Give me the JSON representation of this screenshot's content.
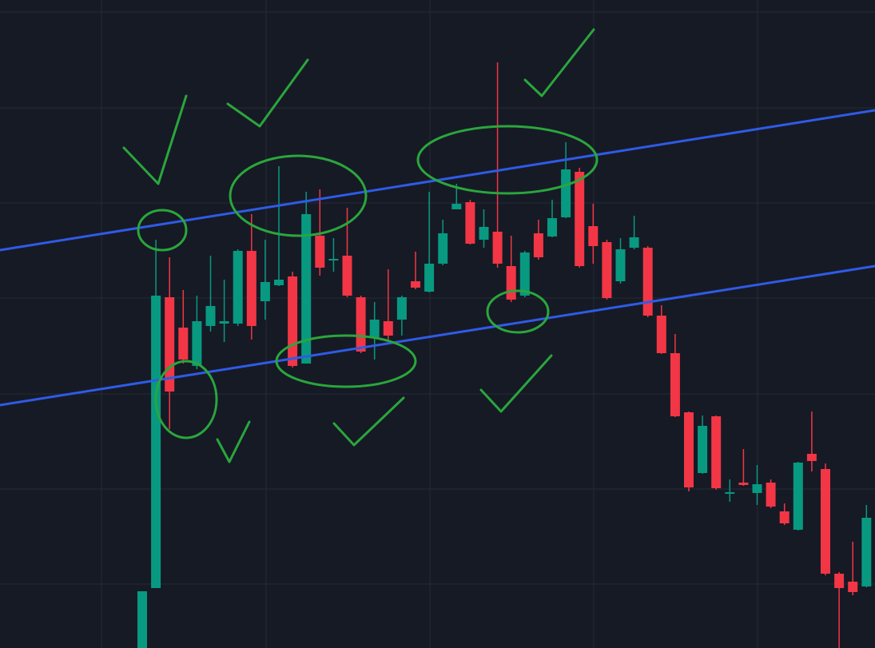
{
  "chart_data": {
    "type": "candlestick",
    "categories": [
      null,
      null,
      null,
      null,
      null,
      null,
      null,
      null,
      null,
      null,
      null,
      null,
      null,
      null,
      null,
      null,
      null,
      null,
      null,
      null,
      null,
      null,
      null,
      null,
      null,
      null,
      null,
      null,
      null,
      null,
      null,
      null,
      null,
      null,
      null,
      null,
      null,
      null,
      null,
      null,
      null,
      null,
      null,
      null,
      null,
      null,
      null,
      null,
      null,
      null,
      null,
      null,
      null,
      null
    ],
    "open": [
      0,
      75,
      439,
      401,
      353,
      403,
      406,
      406,
      497,
      434,
      454,
      465,
      356,
      516,
      485,
      491,
      439,
      389,
      409,
      411,
      459,
      446,
      481,
      549,
      558,
      511,
      521,
      478,
      441,
      519,
      515,
      539,
      596,
      528,
      508,
      459,
      501,
      501,
      416,
      369,
      295,
      219,
      290,
      193,
      207,
      194,
      207,
      171,
      148,
      243,
      224,
      93,
      83,
      77
    ],
    "high": [
      71,
      511,
      489,
      448,
      441,
      491,
      461,
      499,
      543,
      511,
      603,
      471,
      571,
      574,
      513,
      551,
      441,
      433,
      474,
      441,
      496,
      571,
      536,
      581,
      561,
      549,
      733,
      516,
      497,
      536,
      561,
      633,
      601,
      556,
      511,
      513,
      541,
      503,
      429,
      393,
      296,
      291,
      291,
      211,
      249,
      229,
      211,
      181,
      233,
      296,
      231,
      95,
      133,
      179
    ],
    "low": [
      0,
      75,
      274,
      356,
      349,
      396,
      383,
      403,
      386,
      411,
      453,
      351,
      356,
      466,
      471,
      439,
      369,
      361,
      386,
      391,
      449,
      445,
      479,
      549,
      505,
      501,
      476,
      433,
      439,
      486,
      514,
      538,
      476,
      481,
      436,
      456,
      499,
      414,
      368,
      289,
      196,
      218,
      198,
      183,
      203,
      179,
      175,
      154,
      147,
      221,
      91,
      0,
      66,
      76
    ],
    "close": [
      71,
      441,
      321,
      361,
      409,
      428,
      409,
      497,
      403,
      458,
      461,
      353,
      543,
      476,
      487,
      441,
      371,
      411,
      391,
      439,
      451,
      481,
      519,
      556,
      506,
      527,
      481,
      436,
      495,
      489,
      538,
      599,
      478,
      503,
      438,
      499,
      514,
      416,
      369,
      290,
      201,
      278,
      200,
      195,
      204,
      205,
      177,
      156,
      232,
      234,
      93,
      75,
      70,
      163
    ],
    "up_color": "#089981",
    "down_color": "#f23645",
    "ylim": [
      0,
      811
    ],
    "yticks": [
      80,
      199,
      318,
      438,
      557,
      676,
      796
    ],
    "grid": true
  }
}
